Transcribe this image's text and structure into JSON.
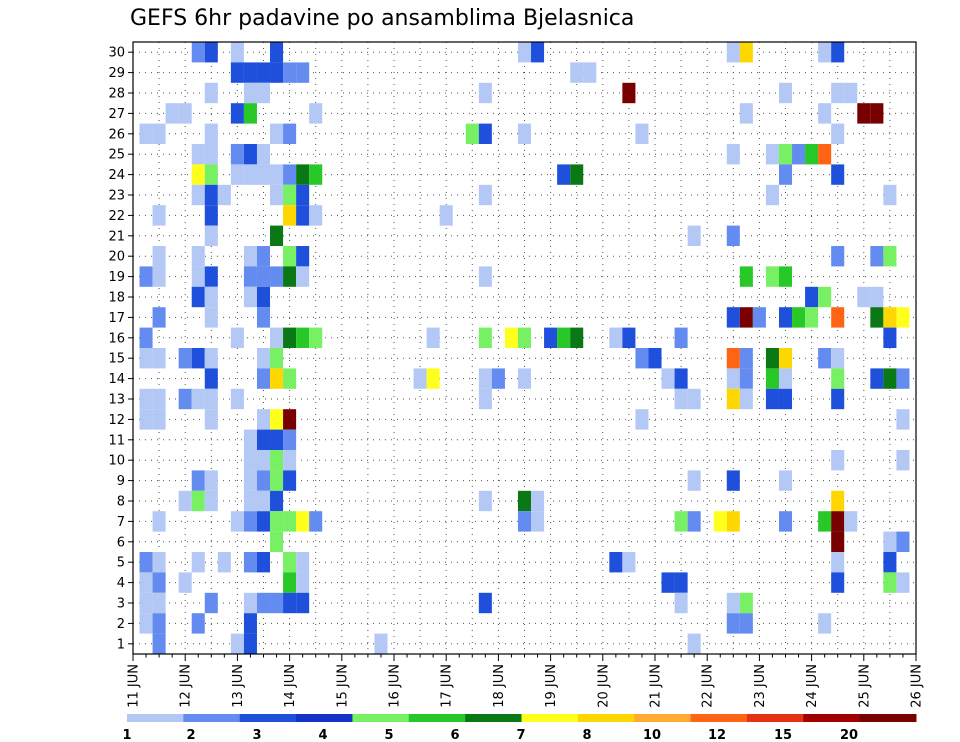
{
  "chart_data": {
    "type": "heatmap",
    "title": "GEFS 6hr padavine po ansamblima Bjelasnica",
    "xlabel": "",
    "ylabel": "",
    "x_axis": {
      "start_day": 11,
      "end_day": 26,
      "month": "JUN",
      "tick_labels": [
        "11 JUN",
        "12 JUN",
        "13 JUN",
        "14 JUN",
        "15 JUN",
        "16 JUN",
        "17 JUN",
        "18 JUN",
        "19 JUN",
        "20 JUN",
        "21 JUN",
        "22 JUN",
        "23 JUN",
        "24 JUN",
        "25 JUN",
        "26 JUN"
      ]
    },
    "y_axis": {
      "min": 1,
      "max": 30,
      "tick_labels": [
        1,
        2,
        3,
        4,
        5,
        6,
        7,
        8,
        9,
        10,
        11,
        12,
        13,
        14,
        15,
        16,
        17,
        18,
        19,
        20,
        21,
        22,
        23,
        24,
        25,
        26,
        27,
        28,
        29,
        30
      ]
    },
    "grid": "dotted",
    "colorbar": {
      "placement": "bottom",
      "labels": [
        "1",
        "2",
        "3",
        "4",
        "5",
        "6",
        "7",
        "8",
        "10",
        "12",
        "15",
        "20"
      ],
      "colors": [
        "#b4c8f5",
        "#648cf0",
        "#1e50dc",
        "#1432c8",
        "#78f064",
        "#28c828",
        "#0a7814",
        "#ffff1e",
        "#ffd700",
        "#ffaa32",
        "#ff6414",
        "#e63214",
        "#a00000",
        "#780000"
      ]
    },
    "cells": [
      [
        30,
        12.25,
        2
      ],
      [
        30,
        12.5,
        3
      ],
      [
        30,
        13,
        1
      ],
      [
        30,
        13.75,
        3
      ],
      [
        30,
        18.5,
        1
      ],
      [
        30,
        18.75,
        3
      ],
      [
        30,
        22.5,
        1
      ],
      [
        30,
        22.75,
        10
      ],
      [
        30,
        24.25,
        1
      ],
      [
        30,
        24.5,
        3
      ],
      [
        29,
        13,
        3
      ],
      [
        29,
        13.25,
        3
      ],
      [
        29,
        13.5,
        3
      ],
      [
        29,
        13.75,
        3
      ],
      [
        29,
        14,
        2
      ],
      [
        29,
        14.25,
        2
      ],
      [
        29,
        19.5,
        1
      ],
      [
        29,
        19.75,
        1
      ],
      [
        28,
        12.5,
        1
      ],
      [
        28,
        13.25,
        1
      ],
      [
        28,
        13.5,
        1
      ],
      [
        28,
        17.75,
        1
      ],
      [
        28,
        20.5,
        20
      ],
      [
        28,
        23.5,
        1
      ],
      [
        28,
        24.5,
        1
      ],
      [
        28,
        24.75,
        1
      ],
      [
        27,
        11.75,
        1
      ],
      [
        27,
        12,
        1
      ],
      [
        27,
        13,
        3
      ],
      [
        27,
        13.25,
        6
      ],
      [
        27,
        14.5,
        1
      ],
      [
        27,
        22.75,
        1
      ],
      [
        27,
        24.25,
        1
      ],
      [
        27,
        25,
        20
      ],
      [
        27,
        25.25,
        20
      ],
      [
        26,
        11.25,
        1
      ],
      [
        26,
        11.5,
        1
      ],
      [
        26,
        12.5,
        1
      ],
      [
        26,
        13.75,
        1
      ],
      [
        26,
        14,
        2
      ],
      [
        26,
        17.5,
        5
      ],
      [
        26,
        17.75,
        3
      ],
      [
        26,
        18.5,
        1
      ],
      [
        26,
        20.75,
        1
      ],
      [
        26,
        24.5,
        1
      ],
      [
        25,
        12.25,
        1
      ],
      [
        25,
        12.5,
        1
      ],
      [
        25,
        13,
        2
      ],
      [
        25,
        13.25,
        3
      ],
      [
        25,
        13.5,
        1
      ],
      [
        25,
        22.5,
        1
      ],
      [
        25,
        23.25,
        1
      ],
      [
        25,
        23.5,
        5
      ],
      [
        25,
        23.75,
        2
      ],
      [
        25,
        24,
        6
      ],
      [
        25,
        24.25,
        15
      ],
      [
        24,
        12.25,
        8
      ],
      [
        24,
        12.5,
        5
      ],
      [
        24,
        13,
        1
      ],
      [
        24,
        13.25,
        1
      ],
      [
        24,
        13.5,
        1
      ],
      [
        24,
        13.75,
        1
      ],
      [
        24,
        14,
        2
      ],
      [
        24,
        14.25,
        7
      ],
      [
        24,
        14.5,
        6
      ],
      [
        24,
        19.25,
        3
      ],
      [
        24,
        19.5,
        7
      ],
      [
        24,
        23.5,
        2
      ],
      [
        24,
        24.5,
        3
      ],
      [
        23,
        12.25,
        1
      ],
      [
        23,
        12.5,
        3
      ],
      [
        23,
        12.75,
        1
      ],
      [
        23,
        13.75,
        1
      ],
      [
        23,
        14,
        5
      ],
      [
        23,
        14.25,
        3
      ],
      [
        23,
        17.75,
        1
      ],
      [
        23,
        23.25,
        1
      ],
      [
        23,
        25.5,
        1
      ],
      [
        22,
        11.5,
        1
      ],
      [
        22,
        12.5,
        3
      ],
      [
        22,
        14,
        10
      ],
      [
        22,
        14.25,
        3
      ],
      [
        22,
        14.5,
        1
      ],
      [
        22,
        17,
        1
      ],
      [
        21,
        12.5,
        1
      ],
      [
        21,
        13.75,
        7
      ],
      [
        21,
        21.75,
        1
      ],
      [
        21,
        22.5,
        2
      ],
      [
        20,
        11.5,
        1
      ],
      [
        20,
        12.25,
        1
      ],
      [
        20,
        13.25,
        1
      ],
      [
        20,
        13.5,
        2
      ],
      [
        20,
        14,
        5
      ],
      [
        20,
        14.25,
        3
      ],
      [
        20,
        24.5,
        2
      ],
      [
        20,
        25.25,
        2
      ],
      [
        20,
        25.5,
        5
      ],
      [
        19,
        11.25,
        2
      ],
      [
        19,
        11.5,
        1
      ],
      [
        19,
        12.25,
        1
      ],
      [
        19,
        12.5,
        3
      ],
      [
        19,
        13.25,
        2
      ],
      [
        19,
        13.5,
        2
      ],
      [
        19,
        13.75,
        2
      ],
      [
        19,
        14,
        7
      ],
      [
        19,
        14.25,
        1
      ],
      [
        19,
        17.75,
        1
      ],
      [
        19,
        22.75,
        6
      ],
      [
        19,
        23.25,
        5
      ],
      [
        19,
        23.5,
        6
      ],
      [
        18,
        12.25,
        3
      ],
      [
        18,
        12.5,
        1
      ],
      [
        18,
        13.25,
        1
      ],
      [
        18,
        13.5,
        3
      ],
      [
        18,
        24,
        3
      ],
      [
        18,
        24.25,
        5
      ],
      [
        18,
        25,
        1
      ],
      [
        18,
        25.25,
        1
      ],
      [
        17,
        11.5,
        2
      ],
      [
        17,
        12.5,
        1
      ],
      [
        17,
        13.5,
        2
      ],
      [
        17,
        22.5,
        3
      ],
      [
        17,
        22.75,
        20
      ],
      [
        17,
        23,
        2
      ],
      [
        17,
        23.5,
        3
      ],
      [
        17,
        23.75,
        6
      ],
      [
        17,
        24,
        5
      ],
      [
        17,
        24.5,
        15
      ],
      [
        17,
        25.25,
        7
      ],
      [
        17,
        25.5,
        10
      ],
      [
        17,
        25.75,
        8
      ],
      [
        16,
        11.25,
        2
      ],
      [
        16,
        13,
        1
      ],
      [
        16,
        13.75,
        1
      ],
      [
        16,
        14,
        7
      ],
      [
        16,
        14.25,
        6
      ],
      [
        16,
        14.5,
        5
      ],
      [
        16,
        16.75,
        1
      ],
      [
        16,
        17.75,
        5
      ],
      [
        16,
        18.25,
        8
      ],
      [
        16,
        18.5,
        5
      ],
      [
        16,
        19,
        3
      ],
      [
        16,
        19.25,
        6
      ],
      [
        16,
        19.5,
        7
      ],
      [
        16,
        20.25,
        1
      ],
      [
        16,
        20.5,
        3
      ],
      [
        16,
        21.5,
        2
      ],
      [
        16,
        25.5,
        3
      ],
      [
        15,
        11.25,
        1
      ],
      [
        15,
        11.5,
        1
      ],
      [
        15,
        12,
        2
      ],
      [
        15,
        12.25,
        3
      ],
      [
        15,
        12.5,
        1
      ],
      [
        15,
        13.5,
        1
      ],
      [
        15,
        13.75,
        5
      ],
      [
        15,
        20.75,
        2
      ],
      [
        15,
        21,
        3
      ],
      [
        15,
        22.5,
        15
      ],
      [
        15,
        22.75,
        2
      ],
      [
        15,
        23.25,
        7
      ],
      [
        15,
        23.5,
        10
      ],
      [
        15,
        24.25,
        2
      ],
      [
        15,
        24.5,
        1
      ],
      [
        14,
        12.5,
        3
      ],
      [
        14,
        13.5,
        2
      ],
      [
        14,
        13.75,
        10
      ],
      [
        14,
        14,
        5
      ],
      [
        14,
        16.5,
        1
      ],
      [
        14,
        16.75,
        8
      ],
      [
        14,
        17.75,
        1
      ],
      [
        14,
        18,
        2
      ],
      [
        14,
        18.5,
        1
      ],
      [
        14,
        21.25,
        1
      ],
      [
        14,
        21.5,
        3
      ],
      [
        14,
        22.5,
        1
      ],
      [
        14,
        22.75,
        2
      ],
      [
        14,
        23.25,
        6
      ],
      [
        14,
        23.5,
        1
      ],
      [
        14,
        24.5,
        5
      ],
      [
        14,
        25.25,
        3
      ],
      [
        14,
        25.5,
        7
      ],
      [
        14,
        25.75,
        2
      ],
      [
        13,
        11.25,
        1
      ],
      [
        13,
        11.5,
        1
      ],
      [
        13,
        12,
        2
      ],
      [
        13,
        12.25,
        1
      ],
      [
        13,
        12.5,
        1
      ],
      [
        13,
        13,
        1
      ],
      [
        13,
        17.75,
        1
      ],
      [
        13,
        21.5,
        1
      ],
      [
        13,
        21.75,
        1
      ],
      [
        13,
        22.5,
        10
      ],
      [
        13,
        22.75,
        1
      ],
      [
        13,
        23.25,
        3
      ],
      [
        13,
        23.5,
        3
      ],
      [
        13,
        24.5,
        3
      ],
      [
        12,
        11.25,
        1
      ],
      [
        12,
        11.5,
        1
      ],
      [
        12,
        12.5,
        1
      ],
      [
        12,
        13.5,
        1
      ],
      [
        12,
        13.75,
        8
      ],
      [
        12,
        14,
        20
      ],
      [
        12,
        20.75,
        1
      ],
      [
        12,
        25.75,
        1
      ],
      [
        11,
        13.25,
        1
      ],
      [
        11,
        13.5,
        3
      ],
      [
        11,
        13.75,
        3
      ],
      [
        11,
        14,
        2
      ],
      [
        10,
        13.25,
        1
      ],
      [
        10,
        13.5,
        1
      ],
      [
        10,
        13.75,
        5
      ],
      [
        10,
        14,
        1
      ],
      [
        10,
        24.5,
        1
      ],
      [
        10,
        25.75,
        1
      ],
      [
        9,
        12.25,
        2
      ],
      [
        9,
        12.5,
        1
      ],
      [
        9,
        13.25,
        1
      ],
      [
        9,
        13.5,
        2
      ],
      [
        9,
        13.75,
        5
      ],
      [
        9,
        14,
        3
      ],
      [
        9,
        21.75,
        1
      ],
      [
        9,
        22.5,
        3
      ],
      [
        9,
        23.5,
        1
      ],
      [
        8,
        12,
        1
      ],
      [
        8,
        12.25,
        5
      ],
      [
        8,
        12.5,
        1
      ],
      [
        8,
        13.25,
        1
      ],
      [
        8,
        13.5,
        1
      ],
      [
        8,
        13.75,
        3
      ],
      [
        8,
        17.75,
        1
      ],
      [
        8,
        18.5,
        7
      ],
      [
        8,
        18.75,
        1
      ],
      [
        8,
        24.5,
        10
      ],
      [
        7,
        11.5,
        1
      ],
      [
        7,
        13,
        1
      ],
      [
        7,
        13.25,
        2
      ],
      [
        7,
        13.5,
        3
      ],
      [
        7,
        13.75,
        5
      ],
      [
        7,
        14,
        5
      ],
      [
        7,
        14.25,
        8
      ],
      [
        7,
        14.5,
        2
      ],
      [
        7,
        18.5,
        2
      ],
      [
        7,
        18.75,
        1
      ],
      [
        7,
        21.5,
        5
      ],
      [
        7,
        21.75,
        2
      ],
      [
        7,
        22.25,
        8
      ],
      [
        7,
        22.5,
        10
      ],
      [
        7,
        23.5,
        2
      ],
      [
        7,
        24.25,
        6
      ],
      [
        7,
        24.5,
        20
      ],
      [
        7,
        24.75,
        1
      ],
      [
        6,
        13.75,
        5
      ],
      [
        6,
        24.5,
        20
      ],
      [
        6,
        25.5,
        1
      ],
      [
        6,
        25.75,
        2
      ],
      [
        5,
        11.25,
        2
      ],
      [
        5,
        11.5,
        1
      ],
      [
        5,
        12.25,
        1
      ],
      [
        5,
        12.75,
        1
      ],
      [
        5,
        13.25,
        2
      ],
      [
        5,
        13.5,
        3
      ],
      [
        5,
        14,
        5
      ],
      [
        5,
        14.25,
        1
      ],
      [
        5,
        20.25,
        3
      ],
      [
        5,
        20.5,
        1
      ],
      [
        5,
        24.5,
        1
      ],
      [
        5,
        25.5,
        3
      ],
      [
        4,
        11.25,
        1
      ],
      [
        4,
        11.5,
        2
      ],
      [
        4,
        12,
        1
      ],
      [
        4,
        14,
        6
      ],
      [
        4,
        14.25,
        1
      ],
      [
        4,
        21.25,
        3
      ],
      [
        4,
        21.5,
        3
      ],
      [
        4,
        24.5,
        3
      ],
      [
        4,
        25.5,
        5
      ],
      [
        4,
        25.75,
        1
      ],
      [
        3,
        11.25,
        1
      ],
      [
        3,
        11.5,
        1
      ],
      [
        3,
        12.5,
        2
      ],
      [
        3,
        13.25,
        1
      ],
      [
        3,
        13.5,
        2
      ],
      [
        3,
        13.75,
        2
      ],
      [
        3,
        14,
        3
      ],
      [
        3,
        14.25,
        3
      ],
      [
        3,
        17.75,
        3
      ],
      [
        3,
        21.5,
        1
      ],
      [
        3,
        22.5,
        1
      ],
      [
        3,
        22.75,
        5
      ],
      [
        2,
        11.25,
        1
      ],
      [
        2,
        11.5,
        2
      ],
      [
        2,
        12.25,
        2
      ],
      [
        2,
        13.25,
        3
      ],
      [
        2,
        22.5,
        2
      ],
      [
        2,
        22.75,
        2
      ],
      [
        2,
        24.25,
        1
      ],
      [
        1,
        11.5,
        2
      ],
      [
        1,
        13,
        1
      ],
      [
        1,
        13.25,
        3
      ],
      [
        1,
        15.75,
        1
      ],
      [
        1,
        21.75,
        1
      ]
    ]
  }
}
